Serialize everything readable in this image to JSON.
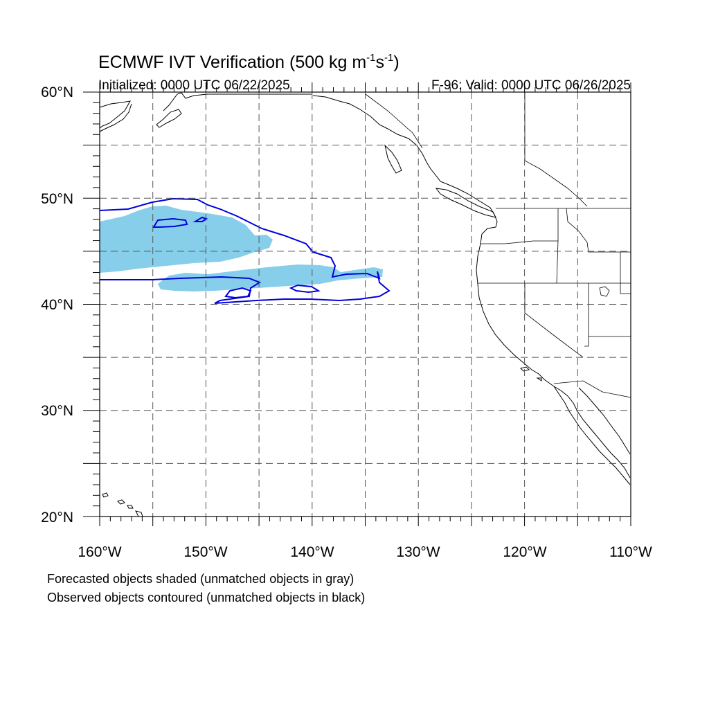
{
  "title": {
    "main": "ECMWF IVT Verification (500 kg m",
    "exp1": "-1",
    "mid": "s",
    "exp2": "-1",
    "close": ")"
  },
  "subtitle_left": "Initialized: 0000 UTC 06/22/2025",
  "subtitle_right": "F-96: Valid: 0000 UTC 06/26/2025",
  "map": {
    "lon_range": [
      -160,
      -110
    ],
    "lat_range": [
      20,
      60
    ],
    "grid": "dashed every 5 degrees",
    "lat_labels": [
      "60°N",
      "50°N",
      "40°N",
      "30°N",
      "20°N"
    ],
    "lon_labels": [
      "160°W",
      "150°W",
      "140°W",
      "130°W",
      "120°W",
      "110°W"
    ]
  },
  "legend": {
    "line1": "Forecasted objects shaded (unmatched objects in gray)",
    "line2": "Observed objects contoured (unmatched objects in black)"
  },
  "colors": {
    "forecast_fill": "#87ceeb",
    "observed_contour": "#0000dd",
    "coastline": "#000000",
    "grid": "#555555"
  }
}
